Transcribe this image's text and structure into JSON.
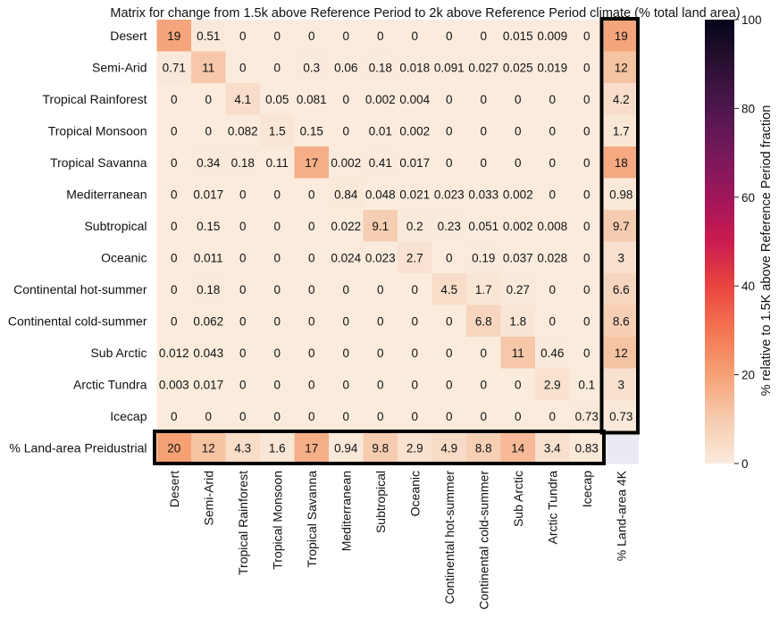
{
  "chart_data": {
    "type": "heatmap",
    "title": "Matrix for change from 1.5k above Reference Period to 2k above Reference Period climate (% total land area)",
    "rows": [
      "Desert",
      "Semi-Arid",
      "Tropical Rainforest",
      "Tropical Monsoon",
      "Tropical Savanna",
      "Mediterranean",
      "Subtropical",
      "Oceanic",
      "Continental hot-summer",
      "Continental cold-summer",
      "Sub Arctic",
      "Arctic Tundra",
      "Icecap",
      "% Land-area Preidustrial"
    ],
    "columns": [
      "Desert",
      "Semi-Arid",
      "Tropical Rainforest",
      "Tropical Monsoon",
      "Tropical Savanna",
      "Mediterranean",
      "Subtropical",
      "Oceanic",
      "Continental hot-summer",
      "Continental cold-summer",
      "Sub Arctic",
      "Arctic Tundra",
      "Icecap",
      "% Land-area 4K"
    ],
    "cells": [
      [
        "19",
        "0.51",
        "0",
        "0",
        "0",
        "0",
        "0",
        "0",
        "0",
        "0",
        "0.015",
        "0.009",
        "0",
        "19"
      ],
      [
        "0.71",
        "11",
        "0",
        "0",
        "0.3",
        "0.06",
        "0.18",
        "0.018",
        "0.091",
        "0.027",
        "0.025",
        "0.019",
        "0",
        "12"
      ],
      [
        "0",
        "0",
        "4.1",
        "0.05",
        "0.081",
        "0",
        "0.002",
        "0.004",
        "0",
        "0",
        "0",
        "0",
        "0",
        "4.2"
      ],
      [
        "0",
        "0",
        "0.082",
        "1.5",
        "0.15",
        "0",
        "0.01",
        "0.002",
        "0",
        "0",
        "0",
        "0",
        "0",
        "1.7"
      ],
      [
        "0",
        "0.34",
        "0.18",
        "0.11",
        "17",
        "0.002",
        "0.41",
        "0.017",
        "0",
        "0",
        "0",
        "0",
        "0",
        "18"
      ],
      [
        "0",
        "0.017",
        "0",
        "0",
        "0",
        "0.84",
        "0.048",
        "0.021",
        "0.023",
        "0.033",
        "0.002",
        "0",
        "0",
        "0.98"
      ],
      [
        "0",
        "0.15",
        "0",
        "0",
        "0",
        "0.022",
        "9.1",
        "0.2",
        "0.23",
        "0.051",
        "0.002",
        "0.008",
        "0",
        "9.7"
      ],
      [
        "0",
        "0.011",
        "0",
        "0",
        "0",
        "0.024",
        "0.023",
        "2.7",
        "0",
        "0.19",
        "0.037",
        "0.028",
        "0",
        "3"
      ],
      [
        "0",
        "0.18",
        "0",
        "0",
        "0",
        "0",
        "0",
        "0",
        "4.5",
        "1.7",
        "0.27",
        "0",
        "0",
        "6.6"
      ],
      [
        "0",
        "0.062",
        "0",
        "0",
        "0",
        "0",
        "0",
        "0",
        "0",
        "6.8",
        "1.8",
        "0",
        "0",
        "8.6"
      ],
      [
        "0.012",
        "0.043",
        "0",
        "0",
        "0",
        "0",
        "0",
        "0",
        "0",
        "0",
        "11",
        "0.46",
        "0",
        "12"
      ],
      [
        "0.003",
        "0.017",
        "0",
        "0",
        "0",
        "0",
        "0",
        "0",
        "0",
        "0",
        "0",
        "2.9",
        "0.1",
        "3"
      ],
      [
        "0",
        "0",
        "0",
        "0",
        "0",
        "0",
        "0",
        "0",
        "0",
        "0",
        "0",
        "0",
        "0.73",
        "0.73"
      ],
      [
        "20",
        "12",
        "4.3",
        "1.6",
        "17",
        "0.94",
        "9.8",
        "2.9",
        "4.9",
        "8.8",
        "14",
        "3.4",
        "0.83",
        null
      ]
    ],
    "colorbar": {
      "label": "% relative to 1.5K above Reference Period fraction",
      "range": [
        0,
        100
      ],
      "ticks": [
        "0",
        "20",
        "40",
        "60",
        "80",
        "100"
      ],
      "colormap": "rocket_r"
    },
    "empty_cell_color": "#eaeaf2"
  }
}
